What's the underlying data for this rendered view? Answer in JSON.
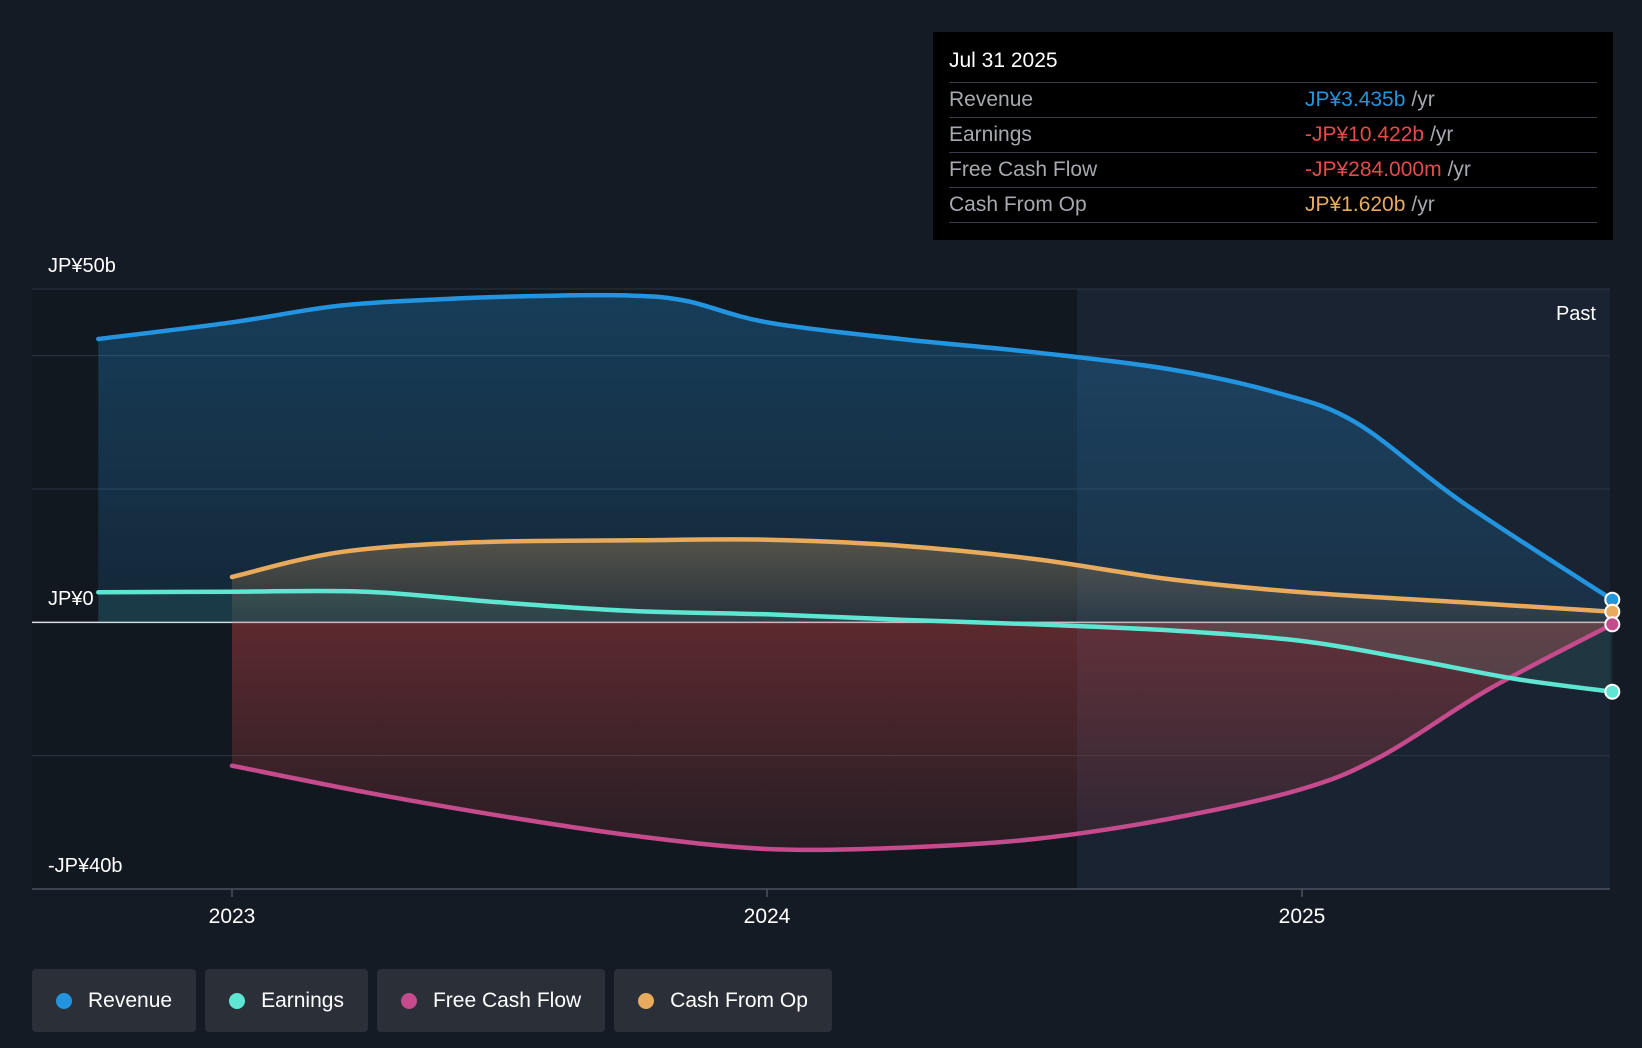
{
  "chart_data": {
    "type": "area",
    "x_ticks": [
      "2023",
      "2024",
      "2025"
    ],
    "y_labels": {
      "top": "JP¥50b",
      "zero": "JP¥0",
      "bottom": "-JP¥40b"
    },
    "ylim": [
      -40,
      50
    ],
    "past_label": "Past",
    "series": [
      {
        "name": "Revenue",
        "color": "#2394df",
        "points": [
          [
            2022.75,
            42.5
          ],
          [
            2023.0,
            45
          ],
          [
            2023.2,
            47.5
          ],
          [
            2023.4,
            48.5
          ],
          [
            2023.6,
            49
          ],
          [
            2023.75,
            49
          ],
          [
            2023.85,
            48.2
          ],
          [
            2024.0,
            45
          ],
          [
            2024.25,
            42.5
          ],
          [
            2024.5,
            40.5
          ],
          [
            2024.75,
            38
          ],
          [
            2024.95,
            34.5
          ],
          [
            2025.1,
            30
          ],
          [
            2025.3,
            18
          ],
          [
            2025.58,
            3.4
          ]
        ]
      },
      {
        "name": "Earnings",
        "color": "#5ee6d2",
        "points": [
          [
            2022.75,
            4.5
          ],
          [
            2023.0,
            4.6
          ],
          [
            2023.25,
            4.6
          ],
          [
            2023.5,
            3
          ],
          [
            2023.75,
            1.7
          ],
          [
            2024.0,
            1.2
          ],
          [
            2024.25,
            0.4
          ],
          [
            2024.5,
            -0.3
          ],
          [
            2024.75,
            -1.2
          ],
          [
            2025.0,
            -2.8
          ],
          [
            2025.2,
            -5.5
          ],
          [
            2025.4,
            -8.5
          ],
          [
            2025.58,
            -10.4
          ]
        ]
      },
      {
        "name": "Free Cash Flow",
        "color": "#c54b8c",
        "points": [
          [
            2023.0,
            -21.5
          ],
          [
            2023.25,
            -25.5
          ],
          [
            2023.5,
            -29
          ],
          [
            2023.75,
            -32
          ],
          [
            2024.0,
            -34
          ],
          [
            2024.25,
            -33.8
          ],
          [
            2024.5,
            -32.5
          ],
          [
            2024.75,
            -29.5
          ],
          [
            2025.0,
            -25
          ],
          [
            2025.15,
            -20
          ],
          [
            2025.35,
            -10
          ],
          [
            2025.58,
            -0.3
          ]
        ]
      },
      {
        "name": "Cash From Op",
        "color": "#e8ab5e",
        "points": [
          [
            2023.0,
            6.8
          ],
          [
            2023.2,
            10.5
          ],
          [
            2023.45,
            12
          ],
          [
            2023.75,
            12.3
          ],
          [
            2024.0,
            12.4
          ],
          [
            2024.25,
            11.5
          ],
          [
            2024.5,
            9.5
          ],
          [
            2024.75,
            6.5
          ],
          [
            2025.0,
            4.5
          ],
          [
            2025.3,
            3
          ],
          [
            2025.58,
            1.6
          ]
        ]
      }
    ]
  },
  "tooltip": {
    "date": "Jul 31 2025",
    "rows": [
      {
        "name": "Revenue",
        "value": "JP¥3.435b",
        "unit": "/yr",
        "color": "#2394df"
      },
      {
        "name": "Earnings",
        "value": "-JP¥10.422b",
        "unit": "/yr",
        "color": "#e64b4b"
      },
      {
        "name": "Free Cash Flow",
        "value": "-JP¥284.000m",
        "unit": "/yr",
        "color": "#e64b4b"
      },
      {
        "name": "Cash From Op",
        "value": "JP¥1.620b",
        "unit": "/yr",
        "color": "#e8ab5e"
      }
    ]
  },
  "legend": [
    {
      "label": "Revenue",
      "color": "#2394df"
    },
    {
      "label": "Earnings",
      "color": "#5ee6d2"
    },
    {
      "label": "Free Cash Flow",
      "color": "#c54b8c"
    },
    {
      "label": "Cash From Op",
      "color": "#e8ab5e"
    }
  ]
}
